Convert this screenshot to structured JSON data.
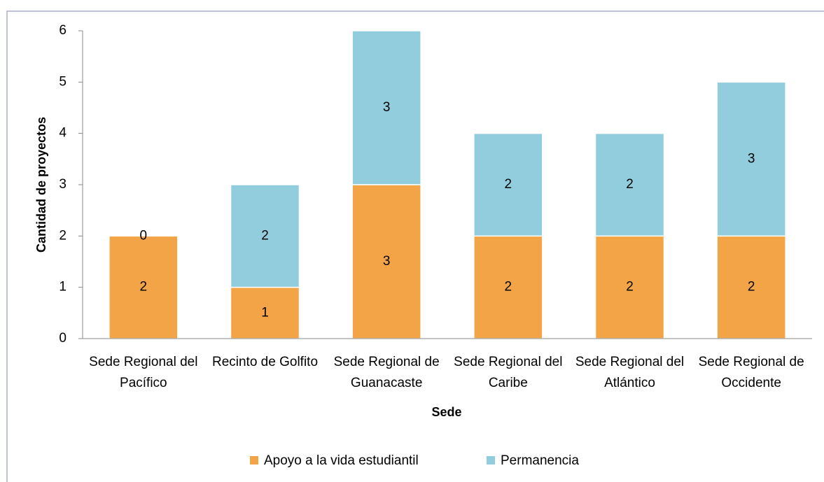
{
  "chart_data": {
    "type": "stacked-bar",
    "y_axis_label": "Cantidad de proyectos",
    "x_axis_label": "Sede",
    "categories": [
      "Sede Regional del Pacífico",
      "Recinto de Golfito",
      "Sede Regional de Guanacaste",
      "Sede Regional del Caribe",
      "Sede Regional del Atlántico",
      "Sede Regional de Occidente"
    ],
    "series": [
      {
        "name": "Apoyo a la vida estudiantil",
        "color": "#f2a446",
        "values": [
          2,
          1,
          3,
          2,
          2,
          2
        ]
      },
      {
        "name": "Permanencia",
        "color": "#92cddd",
        "values": [
          0,
          2,
          3,
          2,
          2,
          3
        ]
      }
    ],
    "ylim": [
      0,
      6
    ],
    "yticks": [
      0,
      1,
      2,
      3,
      4,
      5,
      6
    ],
    "grid": false,
    "legend": "bottom"
  }
}
